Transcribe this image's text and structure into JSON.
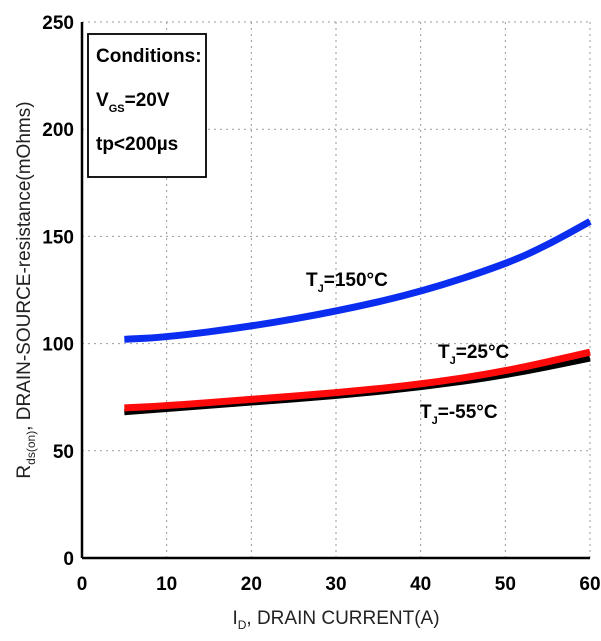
{
  "chart_data": {
    "type": "line",
    "xlabel_main": "I",
    "xlabel_sub": "D",
    "xlabel_rest": ", DRAIN CURRENT(A)",
    "ylabel_main": "R",
    "ylabel_sub": "ds(on)",
    "ylabel_rest": ",  DRAIN-SOURCE-resistance(mOhms)",
    "xlim": [
      0,
      60
    ],
    "ylim": [
      0,
      250
    ],
    "xticks": [
      "0",
      "10",
      "20",
      "30",
      "40",
      "50",
      "60"
    ],
    "yticks": [
      "0",
      "50",
      "100",
      "150",
      "200",
      "250"
    ],
    "grid": true,
    "series": [
      {
        "label_main": "T",
        "label_sub": "J",
        "label_rest": "=150°C",
        "color": "#0a2df0",
        "x": [
          5,
          10,
          20,
          30,
          40,
          50,
          55,
          60
        ],
        "y": [
          102,
          103,
          108,
          115,
          124,
          137,
          146,
          157
        ]
      },
      {
        "label_main": "T",
        "label_sub": "J",
        "label_rest": "=25°C",
        "color": "#ff0a0a",
        "x": [
          5,
          10,
          20,
          30,
          40,
          50,
          60
        ],
        "y": [
          70,
          71,
          74,
          77,
          81,
          87,
          96
        ]
      },
      {
        "label_main": "T",
        "label_sub": "J",
        "label_rest": "=-55°C",
        "color": "#000000",
        "x": [
          5,
          10,
          20,
          30,
          40,
          50,
          60
        ],
        "y": [
          68,
          69.5,
          72.5,
          75.5,
          79.5,
          85,
          93
        ]
      }
    ],
    "conditions": {
      "title": "Conditions:",
      "line1_main": "V",
      "line1_sub": "GS",
      "line1_rest": "=20V",
      "line2": "tp<200µs"
    }
  }
}
